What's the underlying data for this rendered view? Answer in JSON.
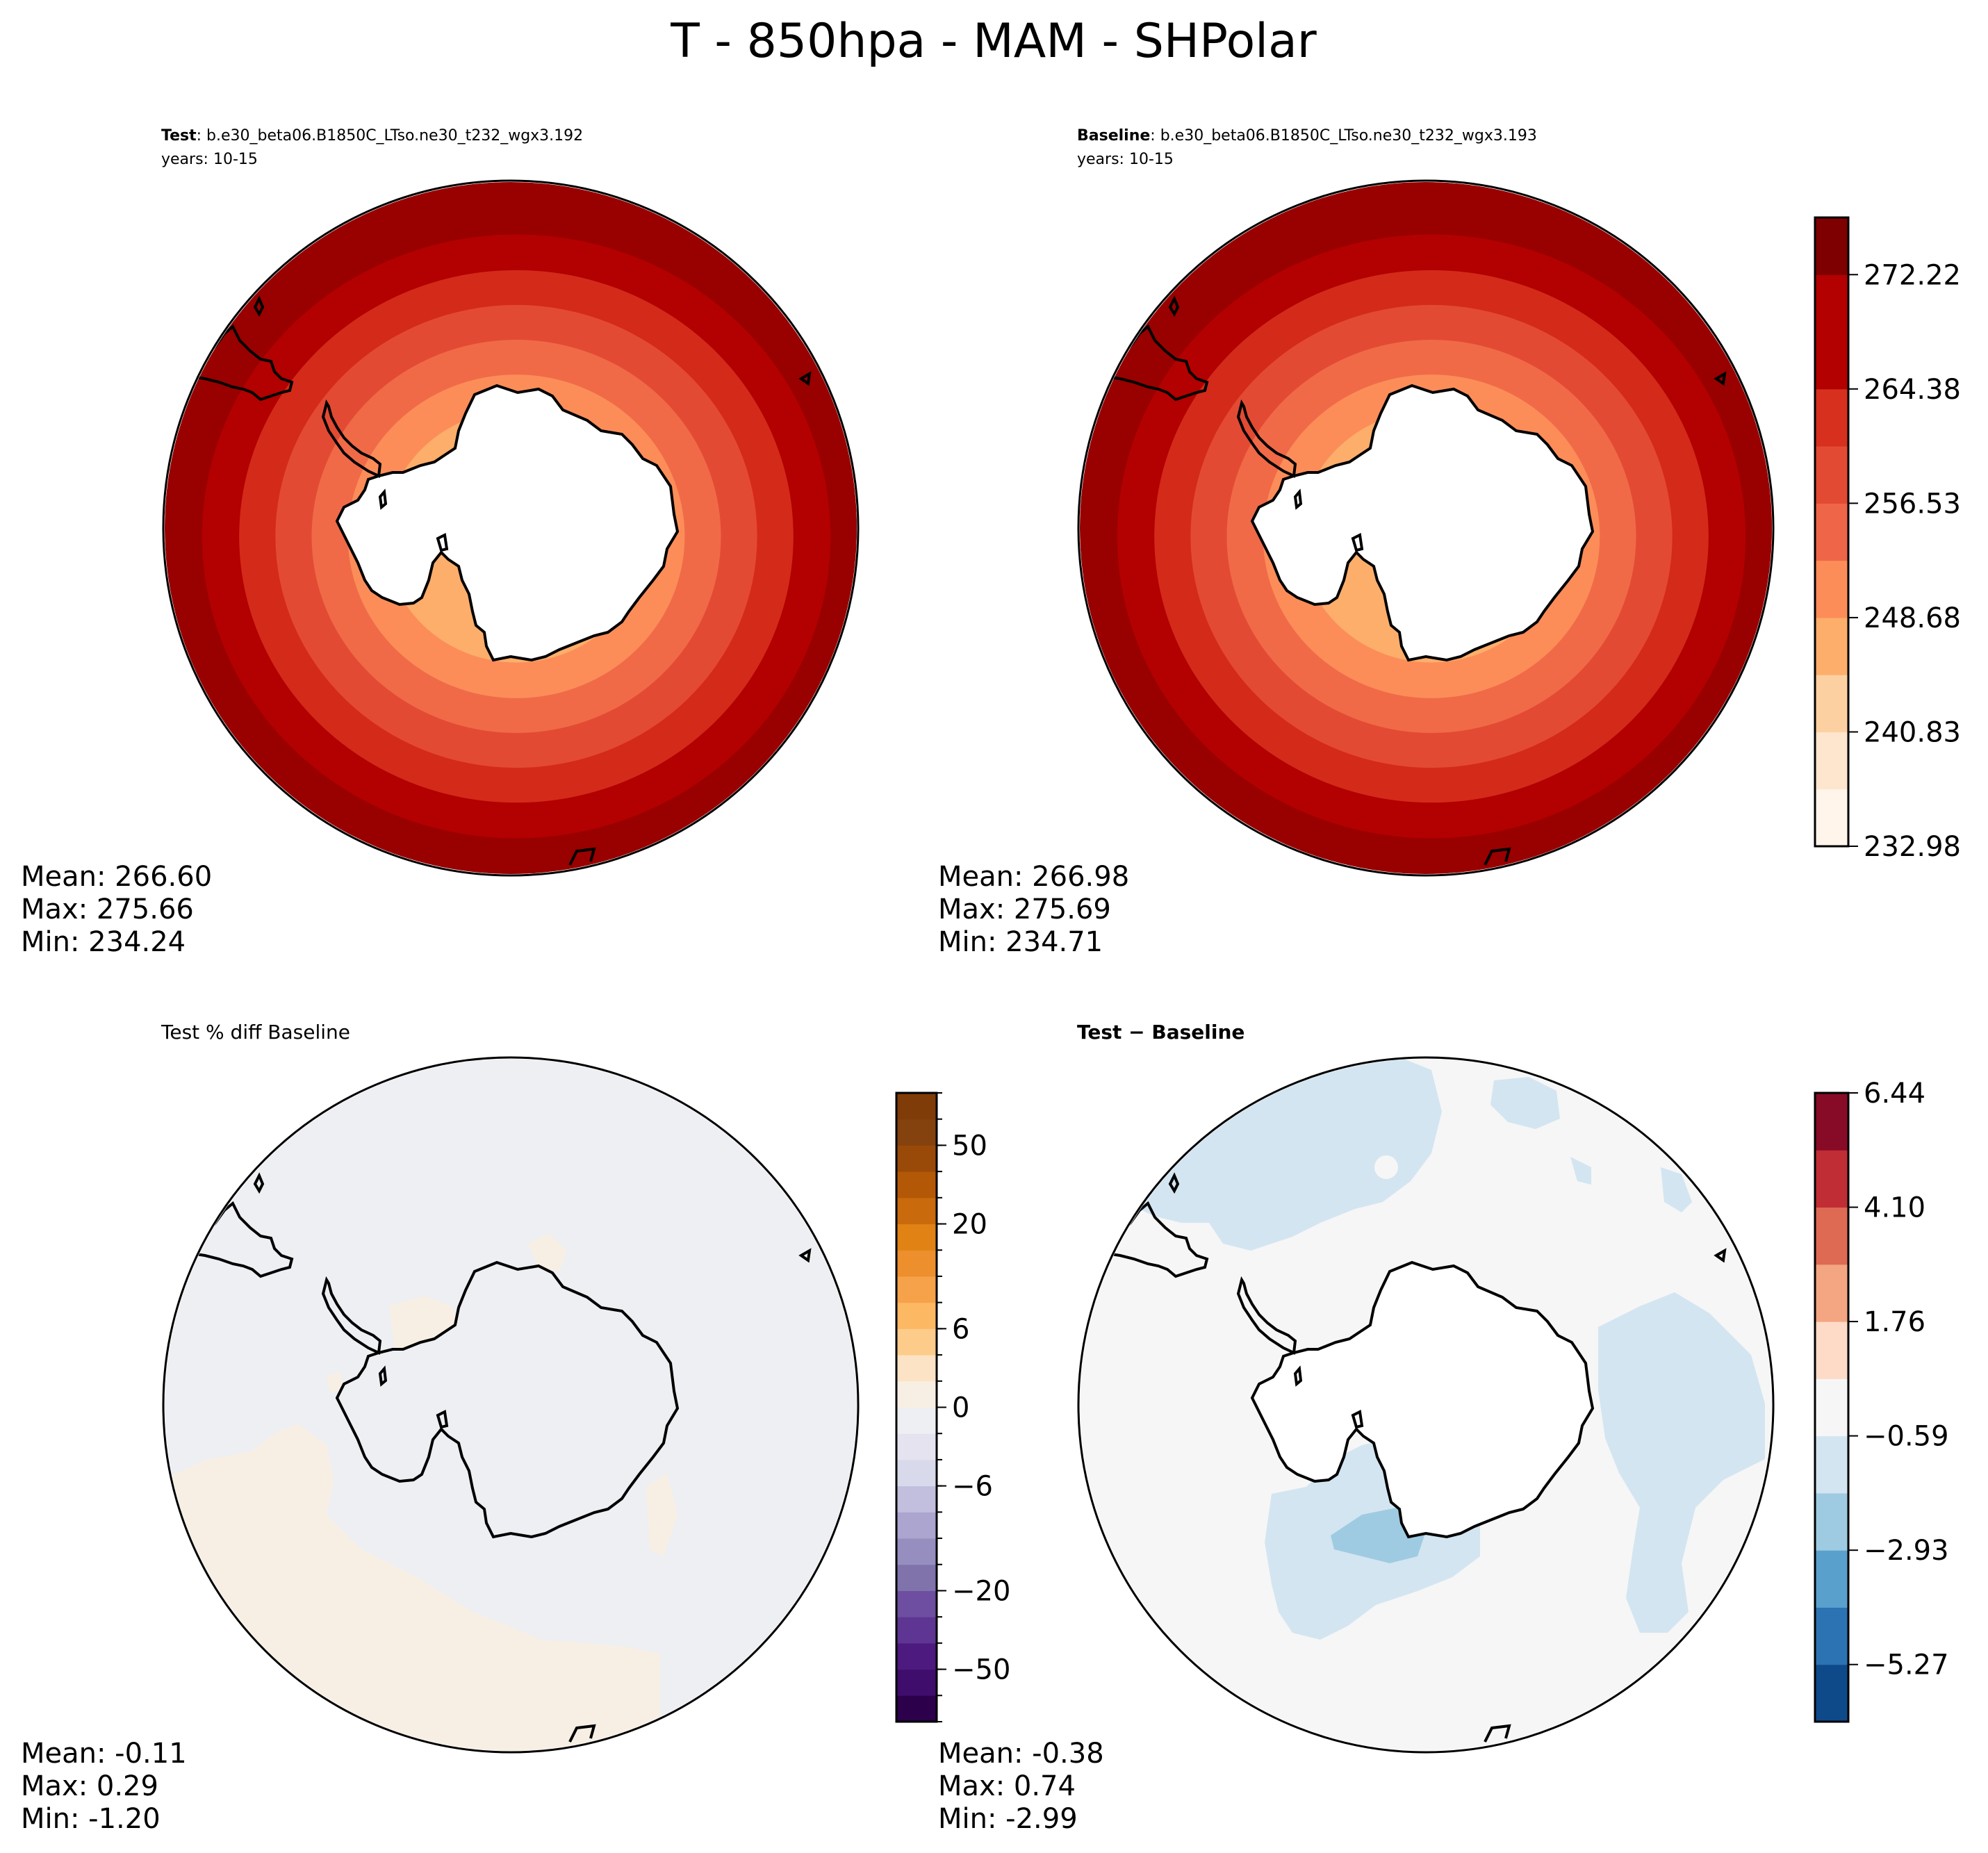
{
  "figure": {
    "title": "T - 850hpa - MAM - SHPolar"
  },
  "panels": {
    "test": {
      "label_bold": "Test",
      "label_rest": ": b.e30_beta06.B1850C_LTso.ne30_t232_wgx3.192",
      "years": "years: 10-15",
      "mean": "Mean: 266.60",
      "max": "Max: 275.66",
      "min": "Min: 234.24"
    },
    "baseline": {
      "label_bold": "Baseline",
      "label_rest": ": b.e30_beta06.B1850C_LTso.ne30_t232_wgx3.193",
      "years": "years: 10-15",
      "mean": "Mean: 266.98",
      "max": "Max: 275.69",
      "min": "Min: 234.71"
    },
    "pctdiff": {
      "title": "Test % diff Baseline",
      "mean": "Mean: -0.11",
      "max": "Max:  0.29",
      "min": "Min: -1.20"
    },
    "diff": {
      "title": "Test − Baseline",
      "mean": "Mean: -0.38",
      "max": "Max:  0.74",
      "min": "Min: -2.99"
    }
  },
  "chart_data": [
    {
      "type": "heatmap",
      "projection": "south-polar-stereographic",
      "shared_panels": [
        "test",
        "baseline"
      ],
      "variable": "T",
      "level": "850hpa",
      "season": "MAM",
      "colorbar": {
        "levels": [
          232.98,
          236.905,
          240.83,
          244.755,
          248.68,
          252.605,
          256.53,
          260.455,
          264.38,
          268.305,
          272.22,
          276.14
        ],
        "ticks": [
          {
            "value": 232.98,
            "label": "232.98"
          },
          {
            "value": 240.83,
            "label": "240.83"
          },
          {
            "value": 248.68,
            "label": "248.68"
          },
          {
            "value": 256.53,
            "label": "256.53"
          },
          {
            "value": 264.38,
            "label": "264.38"
          },
          {
            "value": 272.22,
            "label": "272.22"
          }
        ],
        "colors": [
          "#fff5eb",
          "#fee6ce",
          "#fdd0a2",
          "#fdae6b",
          "#fc8d59",
          "#ef6548",
          "#e34a33",
          "#d7301f",
          "#b30000",
          "#b30000",
          "#7f0000"
        ]
      },
      "rings": {
        "test": [
          {
            "value": 274.2,
            "color": "#990000"
          },
          {
            "value": 270.3,
            "color": "#b30000"
          },
          {
            "value": 266.3,
            "color": "#d42a1a"
          },
          {
            "value": 262.4,
            "color": "#e34a33"
          },
          {
            "value": 258.5,
            "color": "#f06a48"
          },
          {
            "value": 254.6,
            "color": "#fc8d59"
          },
          {
            "value": 250.6,
            "color": "#fdae6b"
          }
        ],
        "baseline": [
          {
            "value": 274.2,
            "color": "#990000"
          },
          {
            "value": 270.3,
            "color": "#b30000"
          },
          {
            "value": 266.3,
            "color": "#d42a1a"
          },
          {
            "value": 262.4,
            "color": "#e34a33"
          },
          {
            "value": 258.5,
            "color": "#f06a48"
          },
          {
            "value": 254.6,
            "color": "#fc8d59"
          },
          {
            "value": 250.6,
            "color": "#fdae6b"
          }
        ]
      }
    },
    {
      "type": "heatmap",
      "projection": "south-polar-stereographic",
      "panel": "pctdiff",
      "colorbar": {
        "levels": [
          -100,
          -70,
          -50,
          -40,
          -30,
          -20,
          -15,
          -10,
          -8,
          -6,
          -4,
          -2,
          0,
          2,
          4,
          6,
          8,
          10,
          15,
          20,
          30,
          40,
          50,
          70,
          100
        ],
        "ticks": [
          {
            "value": -50,
            "label": "−50"
          },
          {
            "value": -20,
            "label": "−20"
          },
          {
            "value": -6,
            "label": "−6"
          },
          {
            "value": 0,
            "label": "0"
          },
          {
            "value": 6,
            "label": "6"
          },
          {
            "value": 20,
            "label": "20"
          },
          {
            "value": 50,
            "label": "50"
          }
        ],
        "colors": [
          "#2d004b",
          "#3f0d6b",
          "#4d1a80",
          "#5e3592",
          "#6e4ea0",
          "#8073ac",
          "#968ebf",
          "#aba5cf",
          "#c2bedd",
          "#d8daeb",
          "#e4e3ef",
          "#eeeff3",
          "#f7efe3",
          "#fde3c5",
          "#fdcc8a",
          "#fdb863",
          "#f6a24a",
          "#ec8f2c",
          "#e08214",
          "#c96a0c",
          "#b35806",
          "#9a4a08",
          "#84420f",
          "#7f3b08"
        ]
      },
      "background_value": -0.3,
      "region_value": 1.0
    },
    {
      "type": "heatmap",
      "projection": "south-polar-stereographic",
      "panel": "diff",
      "colorbar": {
        "levels": [
          -6.44,
          -5.27,
          -4.1,
          -2.93,
          -1.76,
          -0.59,
          0.59,
          1.76,
          2.93,
          4.1,
          5.27,
          6.44
        ],
        "ticks": [
          {
            "value": -5.27,
            "label": "−5.27"
          },
          {
            "value": -2.93,
            "label": "−2.93"
          },
          {
            "value": -0.59,
            "label": "−0.59"
          },
          {
            "value": 1.76,
            "label": "1.76"
          },
          {
            "value": 4.1,
            "label": "4.10"
          },
          {
            "value": 6.44,
            "label": "6.44"
          }
        ],
        "colors": [
          "#0e4a8a",
          "#2c73b4",
          "#5aa0cd",
          "#9fcbe2",
          "#d3e5f1",
          "#f6f6f6",
          "#fddbc7",
          "#f4a582",
          "#de6a54",
          "#c12d35",
          "#870a26"
        ]
      },
      "background_value": 0.0,
      "region_value": -1.0,
      "strong_region_value": -2.5
    }
  ]
}
